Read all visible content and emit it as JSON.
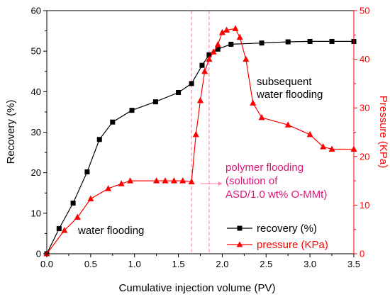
{
  "chart_data": {
    "type": "line",
    "xlabel": "Cumulative injection volume (PV)",
    "ylabel_left": "Recovery (%)",
    "ylabel_right": "Pressure (KPa)",
    "xlim": [
      0,
      3.5
    ],
    "ylim_left": [
      0,
      60
    ],
    "ylim_right": [
      0,
      50
    ],
    "x_ticks": [
      "0.0",
      "0.5",
      "1.0",
      "1.5",
      "2.0",
      "2.5",
      "3.0",
      "3.5"
    ],
    "y_left_ticks": [
      "0",
      "10",
      "20",
      "30",
      "40",
      "50",
      "60"
    ],
    "y_right_ticks": [
      "0",
      "10",
      "20",
      "30",
      "40",
      "50"
    ],
    "grid": false,
    "legend_position": "bottom-right",
    "series": [
      {
        "name": "recovery (%)",
        "axis": "left",
        "color": "#000000",
        "marker": "square",
        "x": [
          0,
          0.14,
          0.3,
          0.46,
          0.6,
          0.75,
          0.97,
          1.24,
          1.5,
          1.65,
          1.77,
          1.85,
          1.95,
          2.1,
          2.45,
          2.75,
          3.0,
          3.25,
          3.5
        ],
        "y": [
          0,
          6.2,
          12.5,
          20.2,
          28.2,
          32.5,
          35.4,
          37.5,
          39.8,
          42.0,
          46.5,
          49.1,
          50.5,
          51.7,
          52.0,
          52.3,
          52.4,
          52.4,
          52.4
        ]
      },
      {
        "name": "pressure (KPa)",
        "axis": "right",
        "color": "#ff0000",
        "marker": "triangle",
        "x": [
          0,
          0.2,
          0.35,
          0.5,
          0.7,
          0.85,
          0.95,
          1.25,
          1.35,
          1.45,
          1.55,
          1.65,
          1.7,
          1.75,
          1.8,
          1.85,
          1.9,
          1.95,
          2.0,
          2.05,
          2.15,
          2.2,
          2.27,
          2.35,
          2.45,
          2.75,
          3.0,
          3.15,
          3.25,
          3.5
        ],
        "y": [
          0,
          4.8,
          7.5,
          11.3,
          13.4,
          14.4,
          15.0,
          15.0,
          15.0,
          15.0,
          15.0,
          14.8,
          24.5,
          31.5,
          37.5,
          40.0,
          41.5,
          43.0,
          45.5,
          46.0,
          46.3,
          44.5,
          40.0,
          31.0,
          28.0,
          26.5,
          24.5,
          22.0,
          21.5,
          21.5
        ]
      }
    ],
    "vertical_lines": [
      {
        "x": 1.65,
        "color": "#ff80a0"
      },
      {
        "x": 1.85,
        "color": "#ff80a0"
      }
    ],
    "annotations": [
      {
        "lines": [
          "subsequent",
          "water flooding"
        ],
        "color": "#000000"
      },
      {
        "lines": [
          "polymer flooding",
          "(solution of",
          "ASD/1.0 wt% O-MMt)"
        ],
        "color": "#e0157a"
      },
      {
        "lines": [
          "water flooding"
        ],
        "color": "#000000"
      }
    ]
  }
}
